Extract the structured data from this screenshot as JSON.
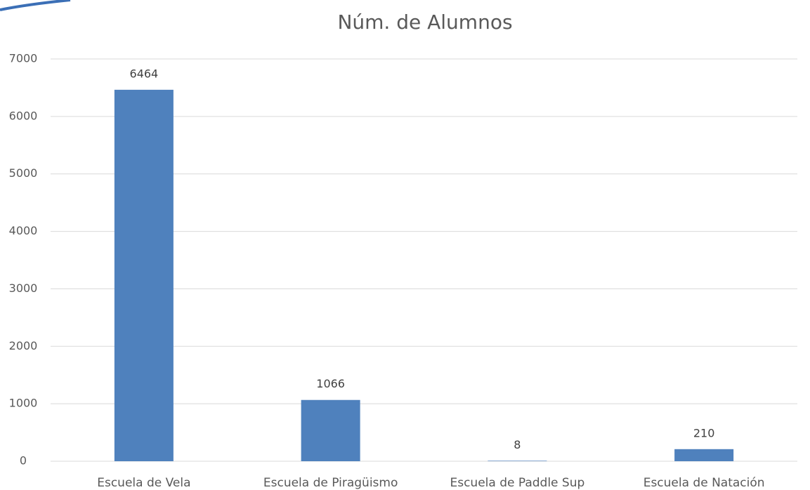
{
  "chart_data": {
    "type": "bar",
    "title": "Núm. de Alumnos",
    "categories": [
      "Escuela de Vela",
      "Escuela de Piragüismo",
      "Escuela de Paddle Sup",
      "Escuela de Natación"
    ],
    "values": [
      6464,
      1066,
      8,
      210
    ],
    "color": "#4f81bd",
    "ylim": [
      0,
      7000
    ],
    "yticks": [
      0,
      1000,
      2000,
      3000,
      4000,
      5000,
      6000,
      7000
    ],
    "grid": true
  }
}
